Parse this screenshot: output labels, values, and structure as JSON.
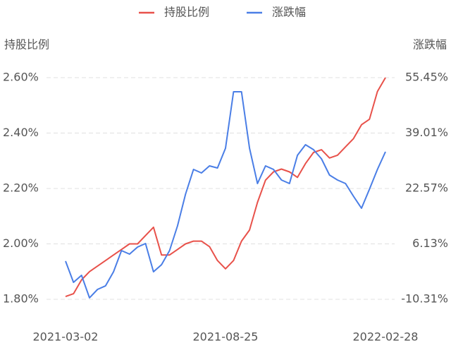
{
  "chart_data": {
    "type": "line",
    "y_label": "持股比例",
    "y2_label": "涨跌幅",
    "categories": [
      "2021-03-02",
      null,
      null,
      null,
      null,
      null,
      null,
      null,
      null,
      null,
      null,
      null,
      null,
      null,
      null,
      null,
      null,
      null,
      null,
      null,
      "2021-08-25",
      null,
      null,
      null,
      null,
      null,
      null,
      null,
      null,
      null,
      null,
      null,
      null,
      null,
      null,
      null,
      null,
      null,
      null,
      null,
      "2022-02-28"
    ],
    "series": [
      {
        "name": "持股比例",
        "color": "#e8514a",
        "values": [
          1.81,
          1.82,
          1.87,
          1.9,
          1.92,
          1.94,
          1.96,
          1.98,
          2.0,
          2.0,
          2.03,
          2.06,
          1.96,
          1.96,
          1.98,
          2.0,
          2.01,
          2.01,
          1.99,
          1.94,
          1.91,
          1.94,
          2.01,
          2.05,
          2.15,
          2.23,
          2.26,
          2.27,
          2.26,
          2.24,
          2.29,
          2.33,
          2.34,
          2.31,
          2.32,
          2.35,
          2.38,
          2.43,
          2.45,
          2.55,
          2.6
        ]
      },
      {
        "name": "涨跌幅",
        "color": "#4a7ee6",
        "axis": "y2",
        "values": [
          1.01,
          -5.28,
          -3.18,
          -9.88,
          -7.37,
          -6.32,
          -2.14,
          4.15,
          3.1,
          5.19,
          6.24,
          -2.14,
          -0.04,
          4.15,
          11.48,
          20.9,
          28.23,
          27.18,
          29.28,
          28.65,
          34.51,
          51.26,
          51.26,
          34.51,
          24.04,
          29.28,
          28.23,
          25.09,
          24.04,
          32.42,
          35.56,
          34.09,
          31.37,
          26.55,
          25.09,
          24.04,
          20.27,
          16.71,
          22.36,
          28.23,
          33.46
        ]
      }
    ],
    "ylim": [
      1.8,
      2.6
    ],
    "yticks": [
      {
        "value": 1.8,
        "label": "1.80%"
      },
      {
        "value": 2.0,
        "label": "2.00%"
      },
      {
        "value": 2.2,
        "label": "2.20%"
      },
      {
        "value": 2.4,
        "label": "2.40%"
      },
      {
        "value": 2.6,
        "label": "2.60%"
      }
    ],
    "y2lim": [
      -10.31,
      55.45
    ],
    "y2ticks": [
      {
        "value": -10.31,
        "label": "-10.31%"
      },
      {
        "value": 6.13,
        "label": "6.13%"
      },
      {
        "value": 22.57,
        "label": "22.57%"
      },
      {
        "value": 39.01,
        "label": "39.01%"
      },
      {
        "value": 55.45,
        "label": "55.45%"
      }
    ],
    "grid": true
  }
}
